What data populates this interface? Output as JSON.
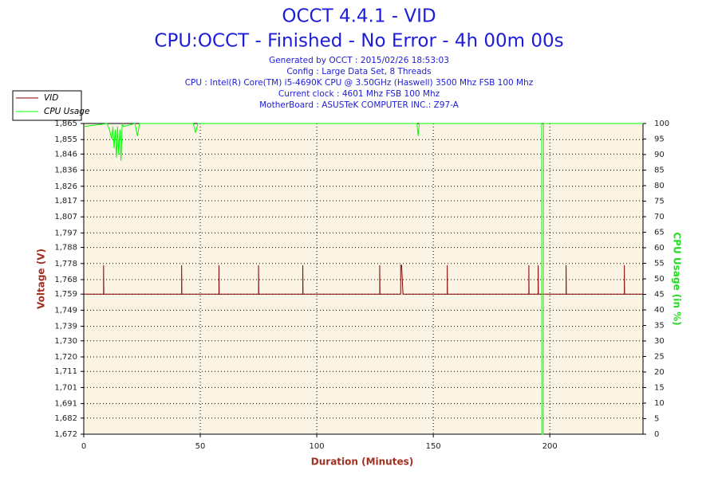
{
  "chart_data": {
    "type": "line",
    "title": "OCCT 4.4.1 - VID",
    "subtitle": "CPU:OCCT - Finished - No Error - 4h 00m 00s",
    "info": [
      "Generated by OCCT : 2015/02/26 18:53:03",
      "Config : Large Data Set, 8 Threads",
      "CPU : Intel(R) Core(TM) i5-4690K CPU @ 3.50GHz (Haswell) 3500 Mhz FSB 100 Mhz",
      "Current clock : 4601 Mhz FSB 100 Mhz",
      "MotherBoard : ASUSTeK COMPUTER INC.: Z97-A"
    ],
    "x_label": "Duration (Minutes)",
    "y_label": "Voltage (V)",
    "y2_label": "CPU Usage (in %)",
    "xlim": [
      0,
      240
    ],
    "xticks": [
      0,
      50,
      100,
      150,
      200
    ],
    "ylim": [
      1.672,
      1.865
    ],
    "yticks": [
      {
        "value": 1.672,
        "label": "1,672"
      },
      {
        "value": 1.682,
        "label": "1,682"
      },
      {
        "value": 1.691,
        "label": "1,691"
      },
      {
        "value": 1.701,
        "label": "1,701"
      },
      {
        "value": 1.711,
        "label": "1,711"
      },
      {
        "value": 1.72,
        "label": "1,720"
      },
      {
        "value": 1.73,
        "label": "1,730"
      },
      {
        "value": 1.739,
        "label": "1,739"
      },
      {
        "value": 1.749,
        "label": "1,749"
      },
      {
        "value": 1.759,
        "label": "1,759"
      },
      {
        "value": 1.768,
        "label": "1,768"
      },
      {
        "value": 1.778,
        "label": "1,778"
      },
      {
        "value": 1.788,
        "label": "1,788"
      },
      {
        "value": 1.797,
        "label": "1,797"
      },
      {
        "value": 1.807,
        "label": "1,807"
      },
      {
        "value": 1.817,
        "label": "1,817"
      },
      {
        "value": 1.826,
        "label": "1,826"
      },
      {
        "value": 1.836,
        "label": "1,836"
      },
      {
        "value": 1.846,
        "label": "1,846"
      },
      {
        "value": 1.855,
        "label": "1,855"
      },
      {
        "value": 1.865,
        "label": "1,865"
      }
    ],
    "y2lim": [
      0,
      100
    ],
    "y2ticks": [
      0,
      5,
      10,
      15,
      20,
      25,
      30,
      35,
      40,
      45,
      50,
      55,
      60,
      65,
      70,
      75,
      80,
      85,
      90,
      95,
      100
    ],
    "grid": true,
    "series": [
      {
        "name": "VID",
        "color": "#800000",
        "x": [
          0,
          8.5,
          8.5,
          8.6,
          42,
          42,
          42.1,
          58,
          58,
          58.1,
          75,
          75,
          75.1,
          94,
          94,
          94.1,
          127,
          127,
          127.1,
          136,
          136,
          136.4,
          137,
          137.1,
          156,
          156,
          156.1,
          191,
          191,
          191.1,
          195,
          195,
          195.1,
          207,
          207,
          207.1,
          232,
          232,
          232.1,
          240
        ],
        "values": [
          1.759,
          1.759,
          1.777,
          1.759,
          1.759,
          1.777,
          1.759,
          1.759,
          1.777,
          1.759,
          1.759,
          1.777,
          1.759,
          1.759,
          1.777,
          1.759,
          1.759,
          1.777,
          1.759,
          1.759,
          1.777,
          1.777,
          1.759,
          1.759,
          1.759,
          1.777,
          1.759,
          1.759,
          1.777,
          1.759,
          1.759,
          1.777,
          1.759,
          1.759,
          1.777,
          1.759,
          1.759,
          1.777,
          1.759,
          1.759
        ]
      },
      {
        "name": "CPU Usage",
        "color": "#00ff00",
        "axis": "y2",
        "x": [
          0,
          10,
          11,
          12,
          12.5,
          13,
          13.5,
          14,
          14.5,
          15,
          15.5,
          16,
          16.5,
          17,
          22,
          23,
          24,
          47,
          48,
          49,
          143,
          143.5,
          144,
          196.5,
          196.6,
          197.2,
          197.3,
          240
        ],
        "values": [
          99,
          100,
          98,
          95,
          99,
          92,
          98,
          89,
          99,
          90,
          98,
          88,
          100,
          99,
          100,
          96,
          100,
          100,
          97,
          100,
          100,
          96,
          100,
          100,
          0,
          0,
          100,
          100
        ]
      }
    ]
  }
}
